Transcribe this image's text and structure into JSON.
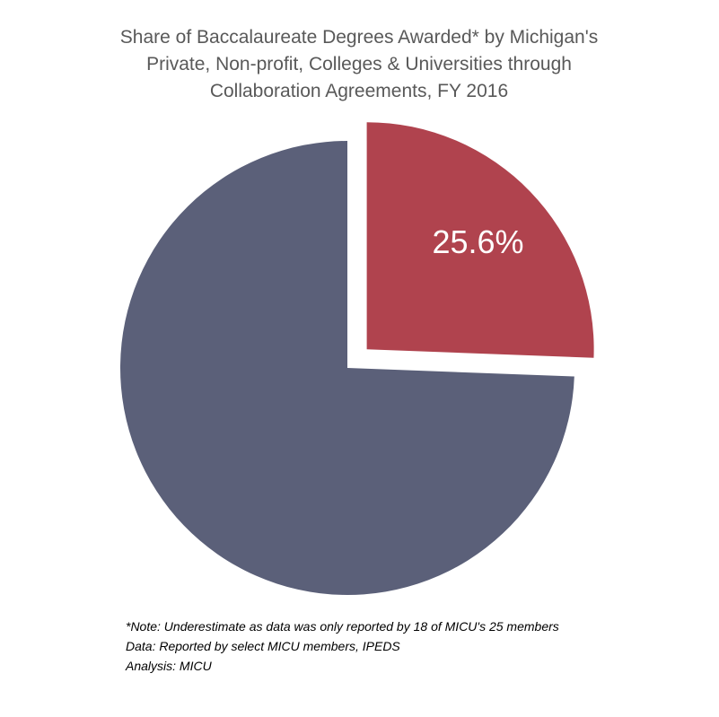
{
  "chart_data": {
    "type": "pie",
    "title": [
      "Share of Baccalaureate Degrees Awarded* by Michigan's",
      "Private, Non-profit, Colleges & Universities through",
      "Collaboration Agreements, FY 2016"
    ],
    "categories": [
      null,
      null
    ],
    "values": [
      25.6,
      74.4
    ],
    "value_labels": [
      "25.6%",
      null
    ],
    "colors": [
      "#b0434e",
      "#5b6079"
    ],
    "exploded": [
      true,
      false
    ],
    "notes": [
      "*Note: Underestimate as data was only reported by 18 of MICU's 25 members",
      "Data: Reported by select MICU members, IPEDS",
      "Analysis: MICU"
    ]
  }
}
